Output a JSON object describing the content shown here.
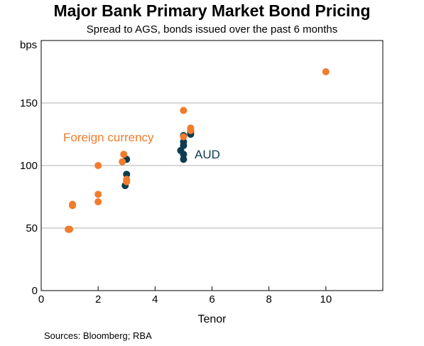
{
  "title": "Major Bank Primary Market Bond Pricing",
  "subtitle": "Spread to AGS, bonds issued over the past 6 months",
  "source": "Sources:  Bloomberg; RBA",
  "colors": {
    "foreign": "#f07c2c",
    "aud": "#0d3c4e",
    "grid": "#b0b0b0",
    "axis": "#000000"
  },
  "chart_data": {
    "type": "scatter",
    "xlabel": "Tenor",
    "ylabel": "bps",
    "xlim": [
      0,
      12
    ],
    "ylim": [
      0,
      200
    ],
    "xticks": [
      0,
      2,
      4,
      6,
      8,
      10
    ],
    "yticks": [
      0,
      50,
      100,
      150
    ],
    "grid": "horizontal",
    "series": [
      {
        "name": "AUD",
        "color": "#0d3c4e",
        "points": [
          [
            3.0,
            105
          ],
          [
            3.0,
            93
          ],
          [
            2.95,
            84
          ],
          [
            4.9,
            112
          ],
          [
            5.0,
            124
          ],
          [
            5.0,
            119
          ],
          [
            5.0,
            116
          ],
          [
            5.0,
            109
          ],
          [
            5.0,
            105
          ],
          [
            5.25,
            125
          ],
          [
            5.25,
            127
          ]
        ]
      },
      {
        "name": "Foreign currency",
        "color": "#f07c2c",
        "points": [
          [
            0.95,
            49
          ],
          [
            1.0,
            49
          ],
          [
            1.1,
            68
          ],
          [
            1.1,
            69
          ],
          [
            2.0,
            100
          ],
          [
            2.0,
            77
          ],
          [
            2.0,
            71
          ],
          [
            2.85,
            103
          ],
          [
            2.9,
            109
          ],
          [
            3.0,
            89
          ],
          [
            3.0,
            87
          ],
          [
            5.0,
            144
          ],
          [
            5.0,
            123
          ],
          [
            5.25,
            130
          ],
          [
            5.25,
            128
          ],
          [
            10.0,
            175
          ]
        ]
      }
    ],
    "annotations": [
      {
        "text": "Foreign currency",
        "series": "Foreign currency"
      },
      {
        "text": "AUD",
        "series": "AUD"
      }
    ]
  }
}
